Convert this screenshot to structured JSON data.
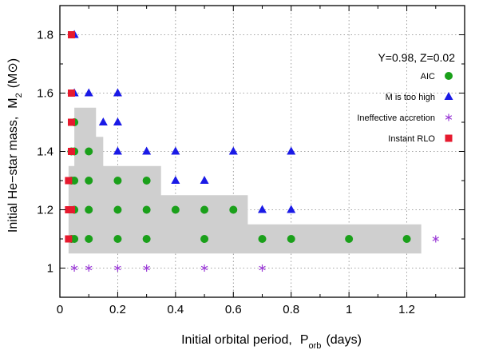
{
  "chart_data": {
    "type": "scatter",
    "annotation": "Y=0.98, Z=0.02",
    "xlabel_main": "Initial orbital period,",
    "xlabel_symbol": "P",
    "xlabel_sub": "orb",
    "xlabel_unit": "(days)",
    "ylabel_main": "Initial He−star mass,",
    "ylabel_symbol": "M",
    "ylabel_sub": "2",
    "ylabel_unit_open": "(M",
    "ylabel_unit_sym": "⊙",
    "ylabel_unit_close": ")",
    "xlim": [
      0,
      1.4
    ],
    "ylim": [
      0.9,
      1.9
    ],
    "x_ticks": [
      0,
      0.2,
      0.4,
      0.6,
      0.8,
      1,
      1.2
    ],
    "x_tick_labels": [
      "0",
      "0.2",
      "0.4",
      "0.6",
      "0.8",
      "1",
      "1.2"
    ],
    "y_ticks": [
      1,
      1.2,
      1.4,
      1.6,
      1.8
    ],
    "y_tick_labels": [
      "1",
      "1.2",
      "1.4",
      "1.6",
      "1.8"
    ],
    "grid": true,
    "legend_position": "right",
    "aic_region": [
      [
        0.05,
        1.55
      ],
      [
        0.125,
        1.55
      ],
      [
        0.125,
        1.45
      ],
      [
        0.15,
        1.45
      ],
      [
        0.15,
        1.35
      ],
      [
        0.35,
        1.35
      ],
      [
        0.35,
        1.25
      ],
      [
        0.65,
        1.25
      ],
      [
        0.65,
        1.15
      ],
      [
        1.25,
        1.15
      ],
      [
        1.25,
        1.05
      ],
      [
        0.03,
        1.05
      ],
      [
        0.03,
        1.35
      ],
      [
        0.05,
        1.35
      ]
    ],
    "series": [
      {
        "name": "AIC",
        "marker": "circle",
        "color": "#1aa01a",
        "points": [
          [
            0.04,
            1.1
          ],
          [
            0.05,
            1.1
          ],
          [
            0.1,
            1.1
          ],
          [
            0.2,
            1.1
          ],
          [
            0.3,
            1.1
          ],
          [
            0.5,
            1.1
          ],
          [
            0.7,
            1.1
          ],
          [
            0.8,
            1.1
          ],
          [
            1.0,
            1.1
          ],
          [
            1.2,
            1.1
          ],
          [
            0.05,
            1.2
          ],
          [
            0.1,
            1.2
          ],
          [
            0.2,
            1.2
          ],
          [
            0.3,
            1.2
          ],
          [
            0.4,
            1.2
          ],
          [
            0.5,
            1.2
          ],
          [
            0.6,
            1.2
          ],
          [
            0.04,
            1.3
          ],
          [
            0.05,
            1.3
          ],
          [
            0.1,
            1.3
          ],
          [
            0.2,
            1.3
          ],
          [
            0.3,
            1.3
          ],
          [
            0.04,
            1.4
          ],
          [
            0.05,
            1.4
          ],
          [
            0.1,
            1.4
          ],
          [
            0.05,
            1.5
          ]
        ]
      },
      {
        "name": "Ṁ is too high",
        "marker": "triangle",
        "color": "#1a1ae6",
        "points": [
          [
            0.05,
            1.8
          ],
          [
            0.05,
            1.6
          ],
          [
            0.1,
            1.6
          ],
          [
            0.2,
            1.6
          ],
          [
            0.15,
            1.5
          ],
          [
            0.2,
            1.5
          ],
          [
            0.2,
            1.4
          ],
          [
            0.3,
            1.4
          ],
          [
            0.4,
            1.4
          ],
          [
            0.6,
            1.4
          ],
          [
            0.8,
            1.4
          ],
          [
            0.4,
            1.3
          ],
          [
            0.5,
            1.3
          ],
          [
            0.7,
            1.2
          ],
          [
            0.8,
            1.2
          ]
        ]
      },
      {
        "name": "Ineffective accretion",
        "marker": "asterisk",
        "color": "#9a3ad6",
        "points": [
          [
            0.05,
            1.0
          ],
          [
            0.1,
            1.0
          ],
          [
            0.2,
            1.0
          ],
          [
            0.3,
            1.0
          ],
          [
            0.5,
            1.0
          ],
          [
            0.7,
            1.0
          ],
          [
            1.3,
            1.1
          ]
        ]
      },
      {
        "name": "Instant RLO",
        "marker": "square",
        "color": "#e61a2e",
        "points": [
          [
            0.04,
            1.8
          ],
          [
            0.04,
            1.6
          ],
          [
            0.04,
            1.5
          ],
          [
            0.04,
            1.4
          ],
          [
            0.03,
            1.3
          ],
          [
            0.03,
            1.2
          ],
          [
            0.04,
            1.2
          ],
          [
            0.03,
            1.1
          ]
        ]
      }
    ]
  }
}
